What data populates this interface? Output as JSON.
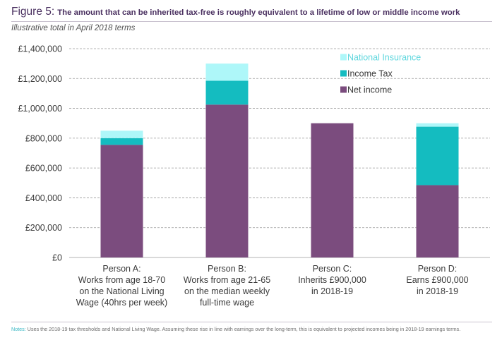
{
  "figure": {
    "label": "Figure 5:",
    "title": "The amount that can be inherited tax-free is roughly equivalent to a lifetime of low or middle income work",
    "subtitle": "Illustrative total in April 2018 terms"
  },
  "notes": {
    "label": "Notes:",
    "text": "Uses the 2018-19 tax thresholds and National Living Wage. Assuming these rise in line with earnings over the long-term, this is equivalent to projected incomes being in 2018-19 earnings terms."
  },
  "colors": {
    "net_income": "#7b4c7e",
    "income_tax": "#14bcc0",
    "national_insurance": "#aef7f9",
    "grid": "#9a9a9a"
  },
  "chart_data": {
    "type": "bar",
    "stacked": true,
    "categories": [
      [
        "Person A:",
        "Works from age 18-70",
        "on the National Living",
        "Wage (40hrs per week)"
      ],
      [
        "Person B:",
        "Works from age 21-65",
        "on the median weekly",
        "full-time wage"
      ],
      [
        "Person C:",
        "Inherits £900,000",
        "in 2018-19"
      ],
      [
        "Person D:",
        "Earns £900,000",
        "in 2018-19"
      ]
    ],
    "series": [
      {
        "name": "Net income",
        "color_key": "net_income",
        "values": [
          755000,
          1025000,
          900000,
          485000
        ]
      },
      {
        "name": "Income Tax",
        "color_key": "income_tax",
        "values": [
          45000,
          160000,
          0,
          392000
        ]
      },
      {
        "name": "National Insurance",
        "color_key": "national_insurance",
        "values": [
          50000,
          115000,
          0,
          23000
        ]
      }
    ],
    "legend_order": [
      "National Insurance",
      "Income Tax",
      "Net income"
    ],
    "legend_position": "top-right",
    "ylim": [
      0,
      1400000
    ],
    "yticks": [
      0,
      200000,
      400000,
      600000,
      800000,
      1000000,
      1200000,
      1400000
    ],
    "ytick_labels": [
      "£0",
      "£200,000",
      "£400,000",
      "£600,000",
      "£800,000",
      "£1,000,000",
      "£1,200,000",
      "£1,400,000"
    ],
    "grid": "horizontal dashed"
  }
}
